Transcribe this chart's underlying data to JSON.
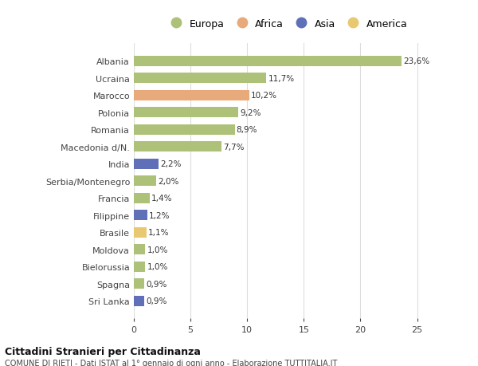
{
  "countries": [
    "Albania",
    "Ucraina",
    "Marocco",
    "Polonia",
    "Romania",
    "Macedonia d/N.",
    "India",
    "Serbia/Montenegro",
    "Francia",
    "Filippine",
    "Brasile",
    "Moldova",
    "Bielorussia",
    "Spagna",
    "Sri Lanka"
  ],
  "values": [
    23.6,
    11.7,
    10.2,
    9.2,
    8.9,
    7.7,
    2.2,
    2.0,
    1.4,
    1.2,
    1.1,
    1.0,
    1.0,
    0.9,
    0.9
  ],
  "labels": [
    "23,6%",
    "11,7%",
    "10,2%",
    "9,2%",
    "8,9%",
    "7,7%",
    "2,2%",
    "2,0%",
    "1,4%",
    "1,2%",
    "1,1%",
    "1,0%",
    "1,0%",
    "0,9%",
    "0,9%"
  ],
  "continents": [
    "Europa",
    "Europa",
    "Africa",
    "Europa",
    "Europa",
    "Europa",
    "Asia",
    "Europa",
    "Europa",
    "Asia",
    "America",
    "Europa",
    "Europa",
    "Europa",
    "Asia"
  ],
  "colors": {
    "Europa": "#adc178",
    "Africa": "#e8aa7a",
    "Asia": "#6070b8",
    "America": "#e8c870"
  },
  "xlim": [
    0,
    27
  ],
  "xticks": [
    0,
    5,
    10,
    15,
    20,
    25
  ],
  "background_color": "#ffffff",
  "grid_color": "#dddddd",
  "title": "Cittadini Stranieri per Cittadinanza",
  "subtitle": "COMUNE DI RIETI - Dati ISTAT al 1° gennaio di ogni anno - Elaborazione TUTTITALIA.IT",
  "legend_order": [
    "Europa",
    "Africa",
    "Asia",
    "America"
  ]
}
